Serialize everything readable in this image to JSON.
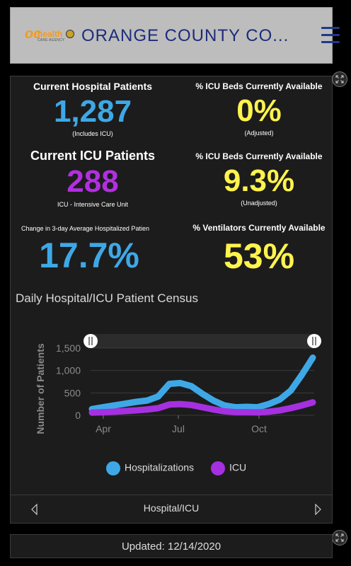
{
  "header": {
    "title": "ORANGE COUNTY CO...",
    "logo_oc": "oc",
    "logo_health": "health",
    "logo_agency": "CARE AGENCY"
  },
  "stats": {
    "hospital": {
      "label": "Current Hospital Patients",
      "value": "1,287",
      "sub": "(Includes ICU)",
      "color": "#3ea8e6"
    },
    "icu_avail_adj": {
      "label": "% ICU Beds Currently Available",
      "value": "0%",
      "sub": "(Adjusted)",
      "color": "#fff34d"
    },
    "icu": {
      "label": "Current ICU Patients",
      "value": "288",
      "sub": "ICU - Intensive Care Unit",
      "color": "#b22fe0"
    },
    "icu_avail_unadj": {
      "label": "% ICU Beds Currently Available",
      "value": "9.3%",
      "sub": "(Unadjusted)",
      "color": "#fff34d"
    },
    "change": {
      "label": "Change in 3-day Average Hospitalized Patien",
      "value": "17.7%",
      "color": "#3ea8e6"
    },
    "vent": {
      "label": "% Ventilators Currently Available",
      "value": "53%",
      "color": "#fff34d"
    }
  },
  "chart_title": "Daily Hospital/ICU Patient Census",
  "chart_data": {
    "type": "line",
    "title": "Daily Hospital/ICU Patient Census",
    "ylabel": "Number of Patients",
    "xlabel": "",
    "ylim": [
      0,
      1500
    ],
    "yticks": [
      "1,500",
      "1,000",
      "500",
      "0"
    ],
    "xticks": [
      "Apr",
      "Jul",
      "Oct"
    ],
    "x": [
      "Mar 27",
      "Apr 10",
      "Apr 25",
      "May 10",
      "May 25",
      "Jun 10",
      "Jun 25",
      "Jul 5",
      "Jul 15",
      "Jul 25",
      "Aug 5",
      "Aug 20",
      "Sep 5",
      "Sep 20",
      "Oct 5",
      "Oct 20",
      "Nov 1",
      "Nov 15",
      "Nov 25",
      "Dec 5",
      "Dec 14"
    ],
    "series": [
      {
        "name": "Hospitalizations",
        "color": "#3ea8e6",
        "values": [
          140,
          180,
          220,
          260,
          300,
          330,
          420,
          700,
          720,
          650,
          480,
          330,
          220,
          180,
          190,
          180,
          250,
          350,
          550,
          900,
          1287
        ]
      },
      {
        "name": "ICU",
        "color": "#a530e0",
        "values": [
          60,
          70,
          80,
          95,
          110,
          130,
          160,
          240,
          250,
          230,
          180,
          130,
          90,
          70,
          70,
          65,
          80,
          110,
          160,
          220,
          288
        ]
      }
    ],
    "legend": "bottom"
  },
  "legend": {
    "hosp": "Hospitalizations",
    "icu": "ICU"
  },
  "pager": {
    "label": "Hospital/ICU"
  },
  "updated": "Updated: 12/14/2020"
}
